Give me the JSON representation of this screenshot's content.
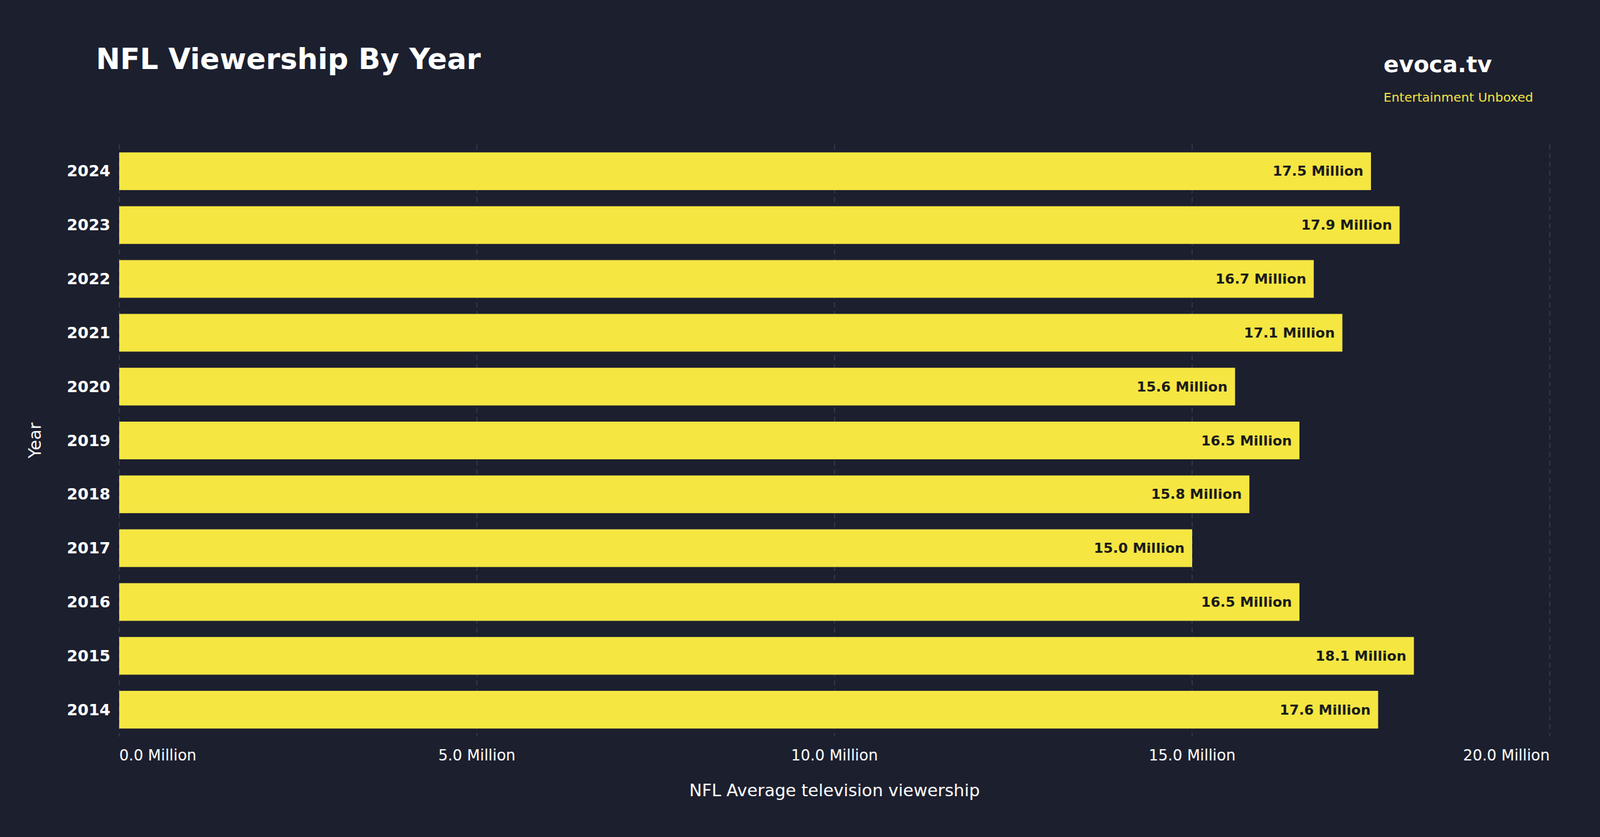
{
  "chart_data": {
    "type": "bar",
    "orientation": "horizontal",
    "title": "NFL Viewership By Year",
    "xlabel": "NFL Average television viewership",
    "ylabel": "Year",
    "categories": [
      "2024",
      "2023",
      "2022",
      "2021",
      "2020",
      "2019",
      "2018",
      "2017",
      "2016",
      "2015",
      "2014"
    ],
    "values": [
      17.5,
      17.9,
      16.7,
      17.1,
      15.6,
      16.5,
      15.8,
      15.0,
      16.5,
      18.1,
      17.6
    ],
    "value_labels": [
      "17.5 Million",
      "17.9 Million",
      "16.7 Million",
      "17.1 Million",
      "15.6 Million",
      "16.5 Million",
      "15.8 Million",
      "15.0 Million",
      "16.5 Million",
      "18.1 Million",
      "17.6 Million"
    ],
    "data_labels": true,
    "color": "#f5e642",
    "xlim": [
      0,
      20
    ],
    "xticks": [
      {
        "value": 0,
        "label": "0.0 Million"
      },
      {
        "value": 5,
        "label": "5.0 Million"
      },
      {
        "value": 10,
        "label": "10.0 Million"
      },
      {
        "value": 15,
        "label": "15.0 Million"
      },
      {
        "value": 20,
        "label": "20.0 Million"
      }
    ],
    "grid": true,
    "annotations": [
      "evoca.tv",
      "Entertainment Unboxed"
    ]
  }
}
